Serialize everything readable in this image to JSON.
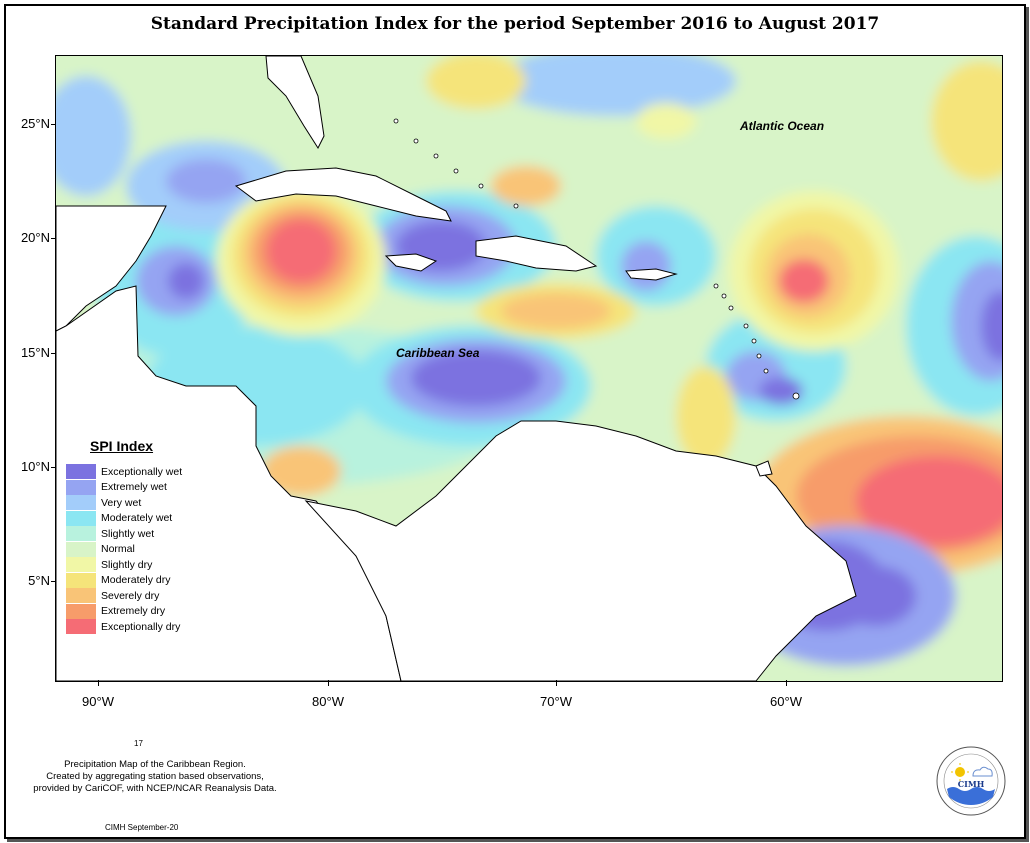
{
  "title": "Standard Precipitation Index for the period September 2016 to August 2017",
  "map": {
    "labels": {
      "atlantic": "Atlantic Ocean",
      "caribbean": "Caribbean Sea"
    },
    "y_ticks": [
      "25°N",
      "20°N",
      "15°N",
      "10°N",
      "5°N"
    ],
    "x_ticks": [
      "90°W",
      "80°W",
      "70°W",
      "60°W"
    ]
  },
  "legend": {
    "title": "SPI Index",
    "items": [
      {
        "label": "Exceptionally wet",
        "color": "#7b72e0"
      },
      {
        "label": "Extremely wet",
        "color": "#95a4f2"
      },
      {
        "label": "Very wet",
        "color": "#a3cdfa"
      },
      {
        "label": "Moderately wet",
        "color": "#8be6f2"
      },
      {
        "label": "Slightly wet",
        "color": "#b8f2de"
      },
      {
        "label": "Normal",
        "color": "#d8f4c8"
      },
      {
        "label": "Slightly dry",
        "color": "#f1f7a6"
      },
      {
        "label": "Moderately dry",
        "color": "#f5e47a"
      },
      {
        "label": "Severely dry",
        "color": "#f9c477"
      },
      {
        "label": "Extremely dry",
        "color": "#f79c6a"
      },
      {
        "label": "Exceptionally dry",
        "color": "#f56c75"
      }
    ]
  },
  "footer": {
    "page_number": "17",
    "line1": "Precipitation Map of the Caribbean Region.",
    "line2": "Created by aggregating station based observations,",
    "line3": "provided by CariCOF, with NCEP/NCAR Reanalysis Data.",
    "credit": "CIMH September-20",
    "logo_text": "CIMH"
  }
}
